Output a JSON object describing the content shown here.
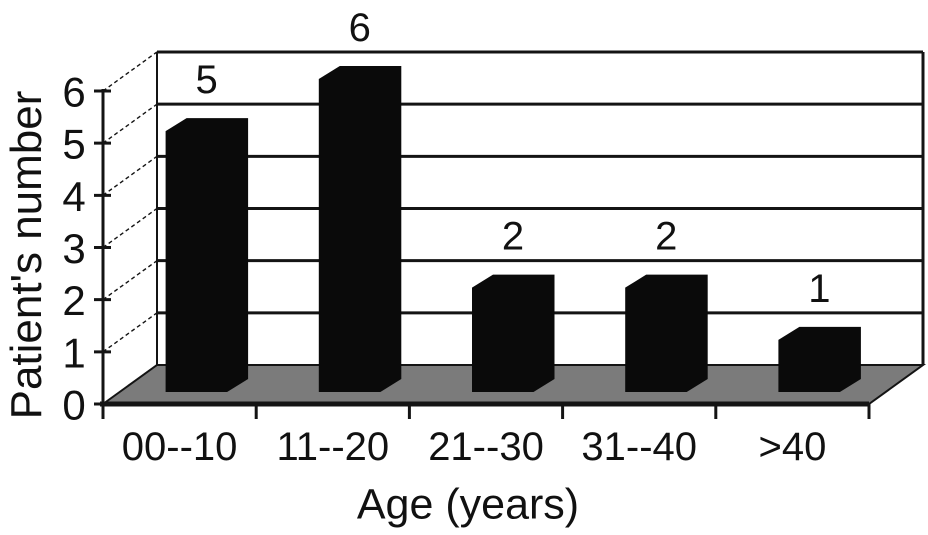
{
  "chart_data": {
    "type": "bar",
    "projection": "3d",
    "title": "",
    "xlabel": "Age (years)",
    "ylabel": "Patient's number",
    "categories": [
      "00--10",
      "11--20",
      "21--30",
      "31--40",
      ">40"
    ],
    "values": [
      5,
      6,
      2,
      2,
      1
    ],
    "bar_labels": [
      "5",
      "6",
      "2",
      "2",
      "1"
    ],
    "y_ticks": [
      "0",
      "1",
      "2",
      "3",
      "4",
      "5",
      "6"
    ],
    "ylim": [
      0,
      6
    ],
    "grid": true,
    "legend": false,
    "colors": {
      "bar": "#0a0a0a",
      "floor": "#7b7b7b",
      "line": "#141414",
      "text": "#111111",
      "background": "#ffffff"
    }
  }
}
